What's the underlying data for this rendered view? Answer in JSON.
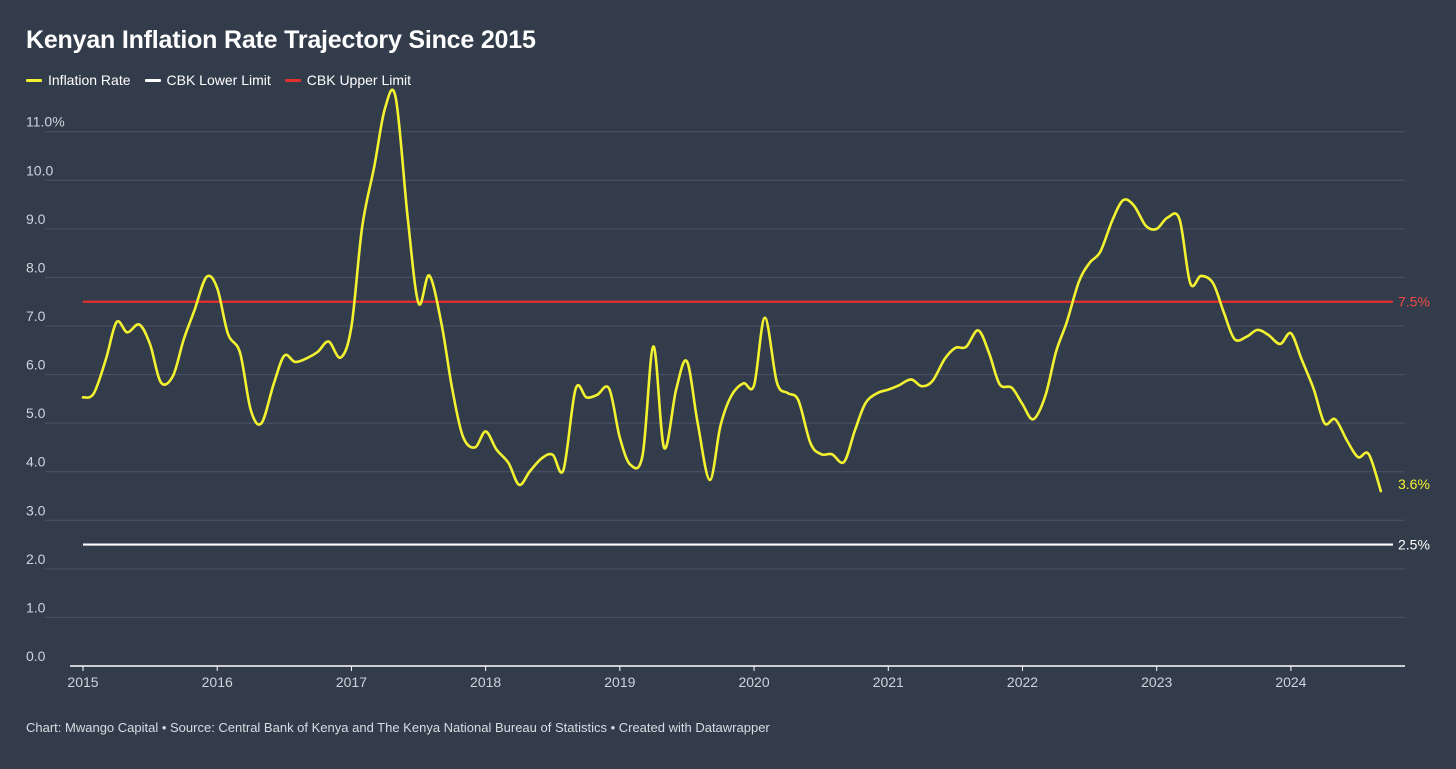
{
  "title": "Kenyan Inflation Rate Trajectory Since 2015",
  "footer": "Chart: Mwango Capital • Source: Central Bank of Kenya and The Kenya National Bureau of Statistics • Created with Datawrapper",
  "colors": {
    "background": "#333c4b",
    "inflation": "#f2f230",
    "lower_limit": "#ffffff",
    "upper_limit": "#e0312e",
    "grid": "#4b5465"
  },
  "chart_data": {
    "type": "line",
    "title": "Kenyan Inflation Rate Trajectory Since 2015",
    "xlabel": "",
    "ylabel": "",
    "xlim": [
      2015,
      2024.85
    ],
    "ylim": [
      0,
      11.9
    ],
    "grid": true,
    "legend_position": "top-left",
    "y_ticks": [
      {
        "value": 0,
        "label": "0.0"
      },
      {
        "value": 1,
        "label": "1.0"
      },
      {
        "value": 2,
        "label": "2.0"
      },
      {
        "value": 3,
        "label": "3.0"
      },
      {
        "value": 4,
        "label": "4.0"
      },
      {
        "value": 5,
        "label": "5.0"
      },
      {
        "value": 6,
        "label": "6.0"
      },
      {
        "value": 7,
        "label": "7.0"
      },
      {
        "value": 8,
        "label": "8.0"
      },
      {
        "value": 9,
        "label": "9.0"
      },
      {
        "value": 10,
        "label": "10.0"
      },
      {
        "value": 11,
        "label": "11.0%"
      }
    ],
    "x_ticks": [
      {
        "value": 2015,
        "label": "2015"
      },
      {
        "value": 2016,
        "label": "2016"
      },
      {
        "value": 2017,
        "label": "2017"
      },
      {
        "value": 2018,
        "label": "2018"
      },
      {
        "value": 2019,
        "label": "2019"
      },
      {
        "value": 2020,
        "label": "2020"
      },
      {
        "value": 2021,
        "label": "2021"
      },
      {
        "value": 2022,
        "label": "2022"
      },
      {
        "value": 2023,
        "label": "2023"
      },
      {
        "value": 2024,
        "label": "2024"
      }
    ],
    "series": [
      {
        "name": "Inflation Rate",
        "color": "#f2f230",
        "end_label": "3.6%",
        "x": [
          2015.0,
          2015.08,
          2015.17,
          2015.25,
          2015.33,
          2015.42,
          2015.5,
          2015.58,
          2015.67,
          2015.75,
          2015.83,
          2015.92,
          2016.0,
          2016.08,
          2016.17,
          2016.25,
          2016.33,
          2016.42,
          2016.5,
          2016.58,
          2016.67,
          2016.75,
          2016.83,
          2016.92,
          2017.0,
          2017.08,
          2017.17,
          2017.25,
          2017.33,
          2017.42,
          2017.5,
          2017.58,
          2017.67,
          2017.75,
          2017.83,
          2017.92,
          2018.0,
          2018.08,
          2018.17,
          2018.25,
          2018.33,
          2018.42,
          2018.5,
          2018.58,
          2018.67,
          2018.75,
          2018.83,
          2018.92,
          2019.0,
          2019.08,
          2019.17,
          2019.25,
          2019.33,
          2019.42,
          2019.5,
          2019.58,
          2019.67,
          2019.75,
          2019.83,
          2019.92,
          2020.0,
          2020.08,
          2020.17,
          2020.25,
          2020.33,
          2020.42,
          2020.5,
          2020.58,
          2020.67,
          2020.75,
          2020.83,
          2020.92,
          2021.0,
          2021.08,
          2021.17,
          2021.25,
          2021.33,
          2021.42,
          2021.5,
          2021.58,
          2021.67,
          2021.75,
          2021.83,
          2021.92,
          2022.0,
          2022.08,
          2022.17,
          2022.25,
          2022.33,
          2022.42,
          2022.5,
          2022.58,
          2022.67,
          2022.75,
          2022.83,
          2022.92,
          2023.0,
          2023.08,
          2023.17,
          2023.25,
          2023.33,
          2023.42,
          2023.5,
          2023.58,
          2023.67,
          2023.75,
          2023.83,
          2023.92,
          2024.0,
          2024.08,
          2024.17,
          2024.25,
          2024.33,
          2024.42,
          2024.5,
          2024.58,
          2024.67
        ],
        "values": [
          5.53,
          5.61,
          6.31,
          7.08,
          6.87,
          7.03,
          6.62,
          5.84,
          5.97,
          6.72,
          7.32,
          8.01,
          7.78,
          6.84,
          6.45,
          5.27,
          5.0,
          5.8,
          6.39,
          6.26,
          6.34,
          6.47,
          6.68,
          6.35,
          6.99,
          9.04,
          10.28,
          11.48,
          11.7,
          9.21,
          7.47,
          8.04,
          7.06,
          5.72,
          4.73,
          4.5,
          4.83,
          4.46,
          4.18,
          3.73,
          4.01,
          4.28,
          4.35,
          4.04,
          5.7,
          5.53,
          5.58,
          5.71,
          4.7,
          4.14,
          4.35,
          6.58,
          4.49,
          5.7,
          6.27,
          5.0,
          3.83,
          4.95,
          5.56,
          5.82,
          5.78,
          7.17,
          5.84,
          5.62,
          5.47,
          4.59,
          4.36,
          4.36,
          4.2,
          4.84,
          5.41,
          5.62,
          5.69,
          5.78,
          5.9,
          5.76,
          5.87,
          6.32,
          6.55,
          6.57,
          6.91,
          6.45,
          5.8,
          5.73,
          5.39,
          5.08,
          5.56,
          6.47,
          7.08,
          7.91,
          8.3,
          8.53,
          9.18,
          9.59,
          9.48,
          9.06,
          9.0,
          9.23,
          9.2,
          7.88,
          8.03,
          7.88,
          7.28,
          6.73,
          6.78,
          6.92,
          6.82,
          6.63,
          6.85,
          6.31,
          5.7,
          5.0,
          5.08,
          4.63,
          4.3,
          4.36,
          3.6
        ]
      },
      {
        "name": "CBK Lower Limit",
        "color": "#ffffff",
        "end_label": "2.5%",
        "x": [
          2015.0,
          2024.67
        ],
        "values": [
          2.5,
          2.5
        ]
      },
      {
        "name": "CBK Upper Limit",
        "color": "#e0312e",
        "end_label": "7.5%",
        "x": [
          2015.0,
          2024.67
        ],
        "values": [
          7.5,
          7.5
        ]
      }
    ]
  }
}
